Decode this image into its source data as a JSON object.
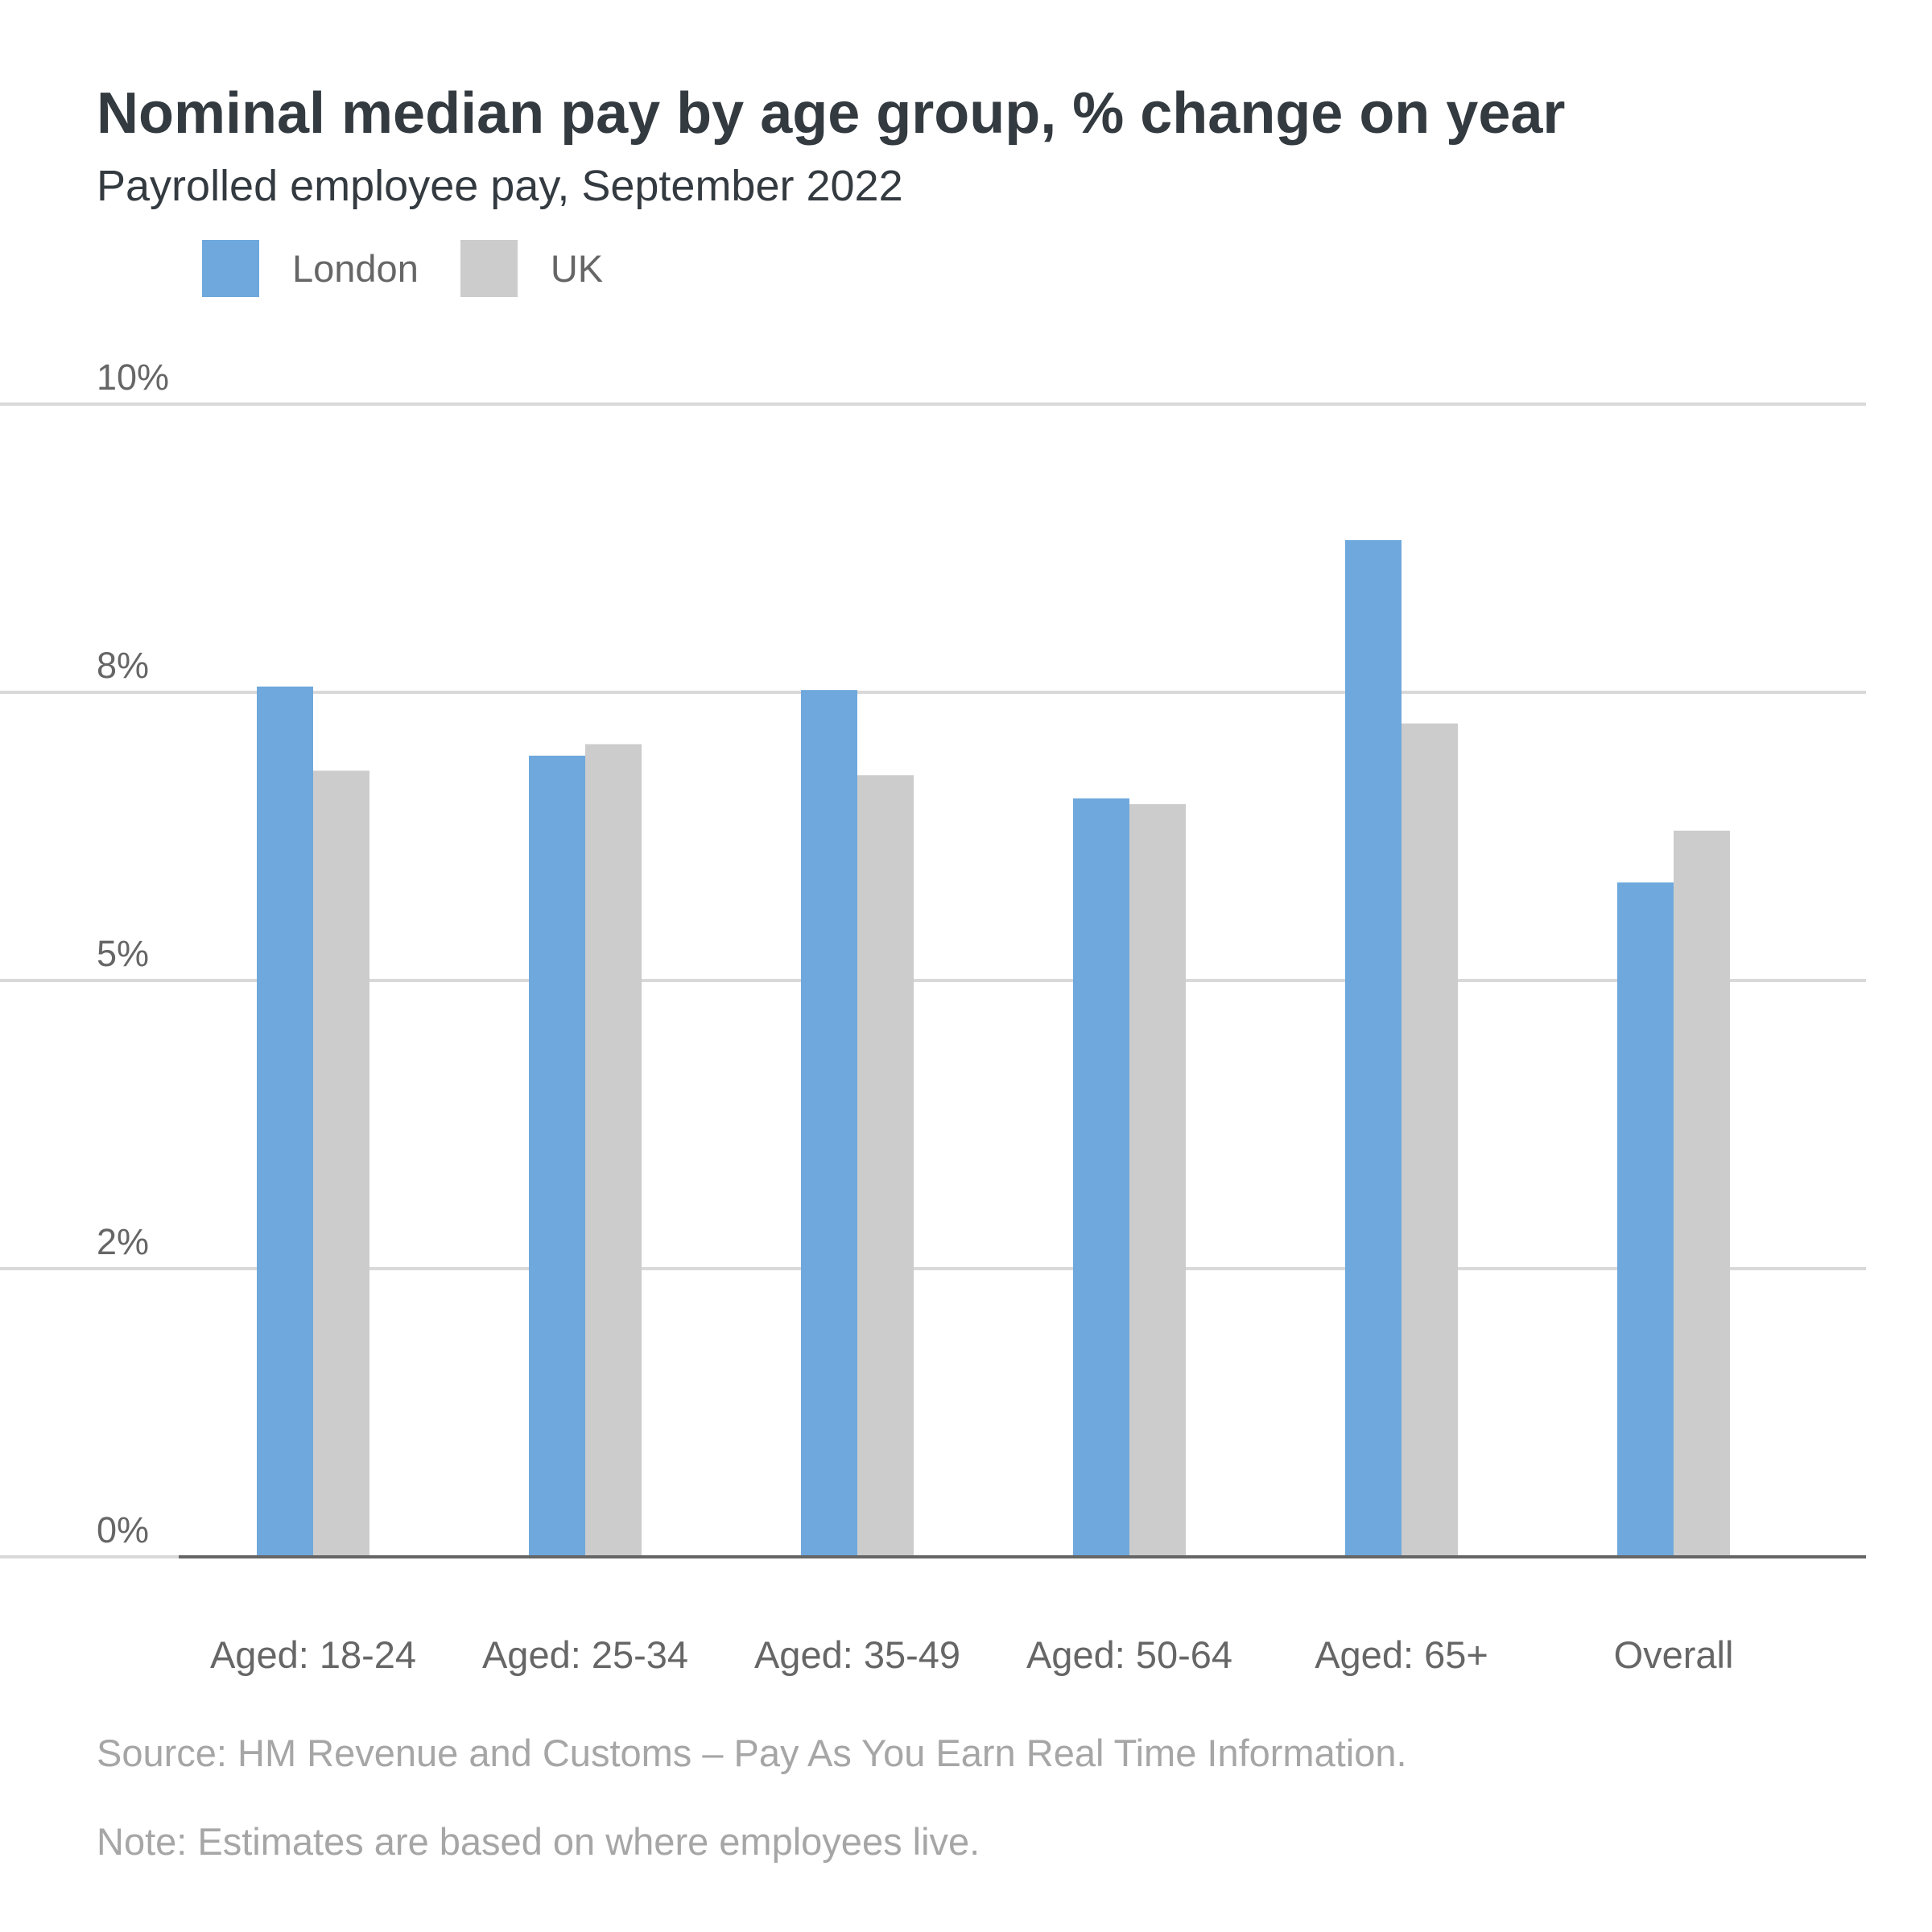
{
  "chart_data": {
    "type": "bar",
    "title": "Nominal median pay by age group, % change on year",
    "subtitle": "Payrolled employee pay, September 2022",
    "categories": [
      "Aged: 18-24",
      "Aged: 25-34",
      "Aged: 35-49",
      "Aged: 50-64",
      "Aged: 65+",
      "Overall"
    ],
    "series": [
      {
        "name": "London",
        "color": "#6fa8dc",
        "values": [
          7.55,
          6.95,
          7.52,
          6.58,
          8.82,
          5.85
        ]
      },
      {
        "name": "UK",
        "color": "#cccccc",
        "values": [
          6.82,
          7.05,
          6.78,
          6.53,
          7.23,
          6.3
        ]
      }
    ],
    "yticks": [
      {
        "label": "0%",
        "value": 0
      },
      {
        "label": "2%",
        "value": 2.5
      },
      {
        "label": "5%",
        "value": 5
      },
      {
        "label": "8%",
        "value": 7.5
      },
      {
        "label": "10%",
        "value": 10
      }
    ],
    "ylim": [
      0,
      10
    ],
    "xlabel": "",
    "ylabel": "",
    "grid": true,
    "legend_position": "top-left",
    "gridline_color": "#d9d9d9",
    "axis_color": "#666666"
  },
  "footer": {
    "source": "Source: HM Revenue and Customs – Pay As You Earn Real Time Information.",
    "note": "Note: Estimates are based on where employees live."
  }
}
